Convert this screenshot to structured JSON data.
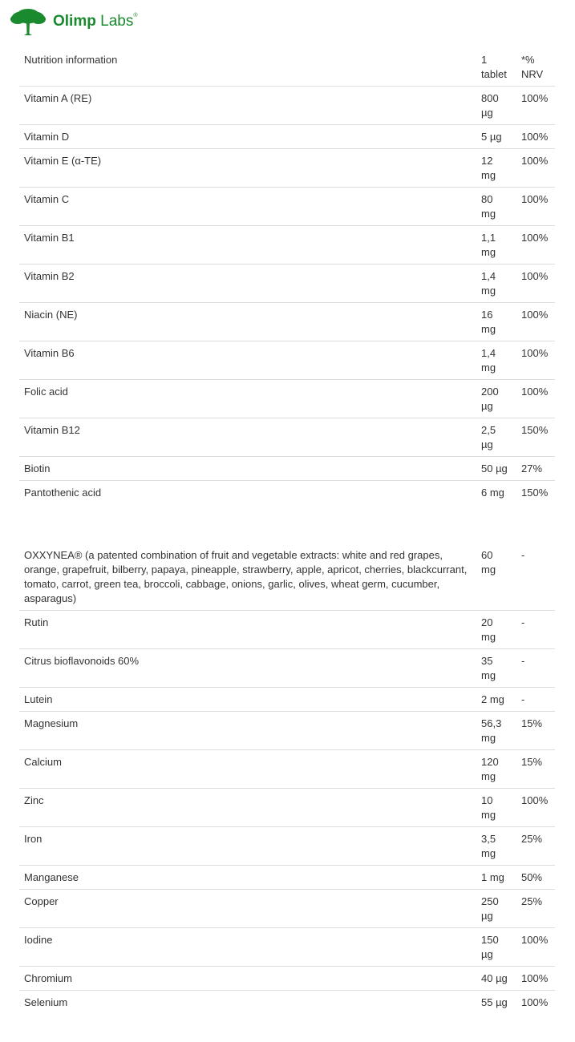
{
  "brand": {
    "name_bold": "Olimp",
    "name_light": "Labs",
    "mark": "®",
    "color": "#1a8a2e"
  },
  "header": {
    "name": "Nutrition information",
    "amount": "1 tablet",
    "nrv": "*% NRV"
  },
  "vitamins": [
    {
      "name": "Vitamin A (RE)",
      "amount": "800 µg",
      "nrv": "100%"
    },
    {
      "name": "Vitamin D",
      "amount": "5 µg",
      "nrv": "100%"
    },
    {
      "name": "Vitamin E (α-TE)",
      "amount": "12 mg",
      "nrv": "100%"
    },
    {
      "name": "Vitamin C",
      "amount": "80 mg",
      "nrv": "100%"
    },
    {
      "name": "Vitamin B1",
      "amount": "1,1 mg",
      "nrv": "100%"
    },
    {
      "name": "Vitamin B2",
      "amount": "1,4 mg",
      "nrv": "100%"
    },
    {
      "name": "Niacin (NE)",
      "amount": "16 mg",
      "nrv": "100%"
    },
    {
      "name": "Vitamin B6",
      "amount": "1,4 mg",
      "nrv": "100%"
    },
    {
      "name": "Folic acid",
      "amount": "200 µg",
      "nrv": "100%"
    },
    {
      "name": "Vitamin B12",
      "amount": "2,5 µg",
      "nrv": "150%"
    },
    {
      "name": "Biotin",
      "amount": "50 µg",
      "nrv": "27%"
    },
    {
      "name": "Pantothenic acid",
      "amount": "6 mg",
      "nrv": "150%"
    }
  ],
  "others": [
    {
      "name": "OXXYNEA® (a patented combination of fruit and vegetable extracts: white and red grapes, orange, grapefruit, bilberry, papaya, pineapple, strawberry, apple, apricot, cherries, blackcurrant, tomato, carrot, green tea, broccoli, cabbage, onions, garlic, olives, wheat germ, cucumber, asparagus)",
      "amount": "60 mg",
      "nrv": "-"
    },
    {
      "name": "Rutin",
      "amount": "20 mg",
      "nrv": "-"
    },
    {
      "name": "Citrus bioflavonoids 60%",
      "amount": "35 mg",
      "nrv": "-"
    },
    {
      "name": "Lutein",
      "amount": "2 mg",
      "nrv": "-"
    },
    {
      "name": "Magnesium",
      "amount": "56,3 mg",
      "nrv": "15%"
    },
    {
      "name": "Calcium",
      "amount": "120 mg",
      "nrv": "15%"
    },
    {
      "name": "Zinc",
      "amount": "10 mg",
      "nrv": "100%"
    },
    {
      "name": "Iron",
      "amount": "3,5 mg",
      "nrv": "25%"
    },
    {
      "name": "Manganese",
      "amount": "1 mg",
      "nrv": "50%"
    },
    {
      "name": "Copper",
      "amount": "250 µg",
      "nrv": "25%"
    },
    {
      "name": "Iodine",
      "amount": "150 µg",
      "nrv": "100%"
    },
    {
      "name": "Chromium",
      "amount": "40 µg",
      "nrv": "100%"
    },
    {
      "name": "Selenium",
      "amount": "55 µg",
      "nrv": "100%"
    }
  ]
}
